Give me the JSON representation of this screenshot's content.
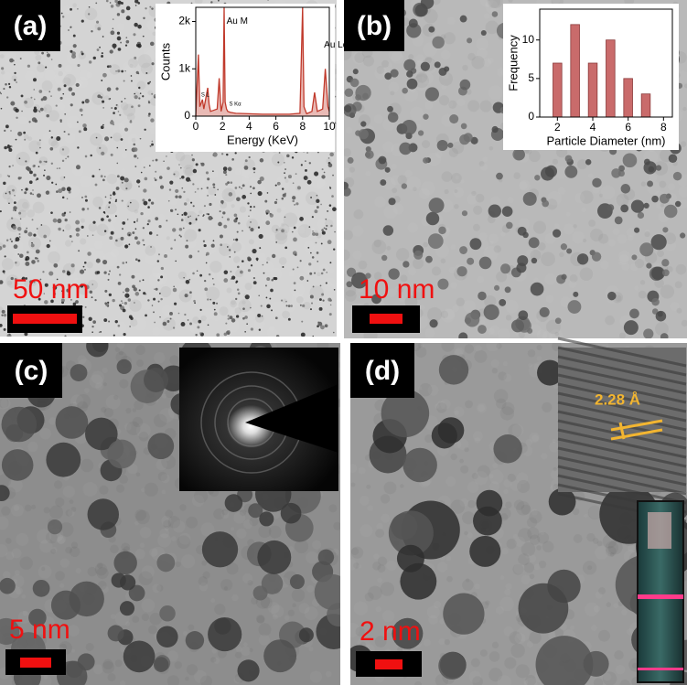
{
  "panels": [
    {
      "label": "(a)",
      "scale_bar": "50 nm"
    },
    {
      "label": "(b)",
      "scale_bar": "10 nm"
    },
    {
      "label": "(c)",
      "scale_bar": "5 nm"
    },
    {
      "label": "(d)",
      "scale_bar": "2 nm",
      "annotation": "2.28 Å"
    }
  ],
  "chart_data": [
    {
      "type": "line",
      "x_label": "Energy (KeV)",
      "y_label": "Counts",
      "color": "#c0392b",
      "x": [
        0,
        0.2,
        0.3,
        0.5,
        0.6,
        0.9,
        1.0,
        1.1,
        1.6,
        1.75,
        1.9,
        2.05,
        2.12,
        2.2,
        2.3,
        2.4,
        2.6,
        3,
        4,
        5,
        6,
        7,
        7.8,
        8.0,
        8.1,
        8.3,
        8.7,
        8.9,
        9.1,
        9.5,
        9.7,
        9.9,
        10
      ],
      "values": [
        0,
        1300,
        200,
        350,
        150,
        600,
        250,
        100,
        150,
        800,
        100,
        300,
        2300,
        300,
        150,
        100,
        80,
        60,
        50,
        40,
        40,
        40,
        60,
        2300,
        200,
        50,
        100,
        500,
        100,
        150,
        1000,
        200,
        100
      ],
      "xlim": [
        0,
        10
      ],
      "ylim": [
        0,
        2300
      ],
      "xticks": [
        0,
        2,
        4,
        6,
        8,
        10
      ],
      "yticks": [
        0,
        {
          "value": 1000,
          "label": "1k"
        },
        {
          "value": 2000,
          "label": "2k"
        }
      ],
      "annotations": [
        {
          "text": "Au M",
          "x": 2.3,
          "y": 2000
        },
        {
          "text": "Au Lα",
          "x": 9.6,
          "y": 1500
        },
        {
          "text": "S Kα",
          "x": 2.5,
          "y": 250
        },
        {
          "text": "S L",
          "x": 0.4,
          "y": 450
        }
      ]
    },
    {
      "type": "bar",
      "x_label": "Particle Diameter (nm)",
      "y_label": "Frequency",
      "color": "#c96b6b",
      "x": [
        2,
        3,
        4,
        5,
        6,
        7
      ],
      "values": [
        7,
        12,
        7,
        10,
        5,
        3
      ],
      "xlim": [
        1,
        8.5
      ],
      "ylim": [
        0,
        14
      ],
      "xticks": [
        2,
        4,
        6,
        8
      ],
      "yticks": [
        0,
        5,
        10
      ]
    }
  ]
}
